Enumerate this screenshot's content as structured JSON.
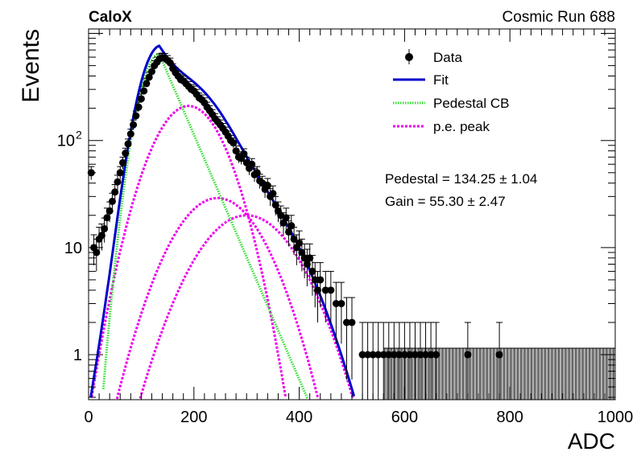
{
  "header": {
    "left_label": "CaloX",
    "right_label": "Cosmic Run 688"
  },
  "axes": {
    "xlabel": "ADC",
    "ylabel": "Events",
    "x_tick_labels": [
      "0",
      "200",
      "400",
      "600",
      "800",
      "1000"
    ],
    "y_tick_labels": [
      {
        "value": 1,
        "label": "1"
      },
      {
        "value": 10,
        "label": "10"
      },
      {
        "value": 100,
        "label": "10",
        "sup": "2"
      }
    ]
  },
  "legend": {
    "items": [
      {
        "key": "data",
        "label": "Data"
      },
      {
        "key": "fit",
        "label": "Fit"
      },
      {
        "key": "pedestal",
        "label": "Pedestal CB"
      },
      {
        "key": "pe",
        "label": "p.e. peak"
      }
    ]
  },
  "annotations": {
    "pedestal": "Pedestal = 134.25 ± 1.04",
    "gain": "Gain = 55.30 ± 2.47"
  },
  "colors": {
    "data": "#000000",
    "fit": "#0000cc",
    "pedestal": "#33dd33",
    "pe": "#ee00ee"
  },
  "chart_data": {
    "type": "scatter",
    "xlim": [
      0,
      1000
    ],
    "ylim": [
      0.38,
      1100
    ],
    "yscale": "log",
    "grid": false,
    "legend_position": "top-right",
    "data_points": [
      [
        5,
        50
      ],
      [
        10,
        10
      ],
      [
        15,
        9
      ],
      [
        20,
        12
      ],
      [
        25,
        13
      ],
      [
        30,
        15
      ],
      [
        35,
        19
      ],
      [
        40,
        22
      ],
      [
        45,
        27
      ],
      [
        50,
        33
      ],
      [
        55,
        41
      ],
      [
        60,
        50
      ],
      [
        65,
        62
      ],
      [
        70,
        76
      ],
      [
        75,
        93
      ],
      [
        80,
        115
      ],
      [
        85,
        140
      ],
      [
        90,
        170
      ],
      [
        95,
        205
      ],
      [
        100,
        245
      ],
      [
        105,
        290
      ],
      [
        110,
        340
      ],
      [
        115,
        390
      ],
      [
        120,
        440
      ],
      [
        125,
        500
      ],
      [
        130,
        540
      ],
      [
        135,
        580
      ],
      [
        140,
        590
      ],
      [
        145,
        585
      ],
      [
        150,
        560
      ],
      [
        155,
        530
      ],
      [
        160,
        470
      ],
      [
        165,
        430
      ],
      [
        170,
        400
      ],
      [
        175,
        370
      ],
      [
        180,
        360
      ],
      [
        185,
        340
      ],
      [
        190,
        320
      ],
      [
        195,
        300
      ],
      [
        200,
        290
      ],
      [
        205,
        270
      ],
      [
        210,
        250
      ],
      [
        215,
        240
      ],
      [
        220,
        225
      ],
      [
        225,
        205
      ],
      [
        230,
        190
      ],
      [
        235,
        175
      ],
      [
        240,
        160
      ],
      [
        245,
        150
      ],
      [
        250,
        140
      ],
      [
        255,
        130
      ],
      [
        260,
        120
      ],
      [
        265,
        110
      ],
      [
        270,
        100
      ],
      [
        275,
        95
      ],
      [
        280,
        80
      ],
      [
        285,
        70
      ],
      [
        290,
        68
      ],
      [
        295,
        75
      ],
      [
        300,
        62
      ],
      [
        305,
        55
      ],
      [
        310,
        60
      ],
      [
        315,
        48
      ],
      [
        320,
        50
      ],
      [
        325,
        42
      ],
      [
        330,
        40
      ],
      [
        335,
        35
      ],
      [
        340,
        38
      ],
      [
        345,
        30
      ],
      [
        350,
        32
      ],
      [
        355,
        25
      ],
      [
        360,
        22
      ],
      [
        365,
        20
      ],
      [
        370,
        17
      ],
      [
        375,
        19
      ],
      [
        380,
        14
      ],
      [
        385,
        16
      ],
      [
        390,
        12
      ],
      [
        395,
        10
      ],
      [
        400,
        11
      ],
      [
        405,
        9
      ],
      [
        410,
        8
      ],
      [
        415,
        7
      ],
      [
        420,
        8
      ],
      [
        425,
        6
      ],
      [
        430,
        5
      ],
      [
        435,
        4
      ],
      [
        440,
        5
      ],
      [
        450,
        4
      ],
      [
        460,
        4
      ],
      [
        470,
        3
      ],
      [
        480,
        3
      ],
      [
        490,
        2
      ],
      [
        500,
        2
      ],
      [
        520,
        1
      ],
      [
        530,
        1
      ],
      [
        540,
        1
      ],
      [
        550,
        1
      ],
      [
        560,
        1
      ],
      [
        570,
        1
      ],
      [
        580,
        1
      ],
      [
        590,
        1
      ],
      [
        600,
        1
      ],
      [
        610,
        1
      ],
      [
        620,
        1
      ],
      [
        630,
        1
      ],
      [
        640,
        1
      ],
      [
        650,
        1
      ],
      [
        660,
        1
      ],
      [
        720,
        1
      ],
      [
        780,
        1
      ]
    ],
    "fit_params": {
      "pedestal_mean": 134.25,
      "pedestal_sigma": 28,
      "pedestal_amplitude": 640,
      "pe_peaks": [
        {
          "mean": 190,
          "sigma": 52,
          "amplitude": 210
        },
        {
          "mean": 245,
          "sigma": 65,
          "amplitude": 29
        },
        {
          "mean": 300,
          "sigma": 72,
          "amplitude": 20
        }
      ]
    }
  }
}
